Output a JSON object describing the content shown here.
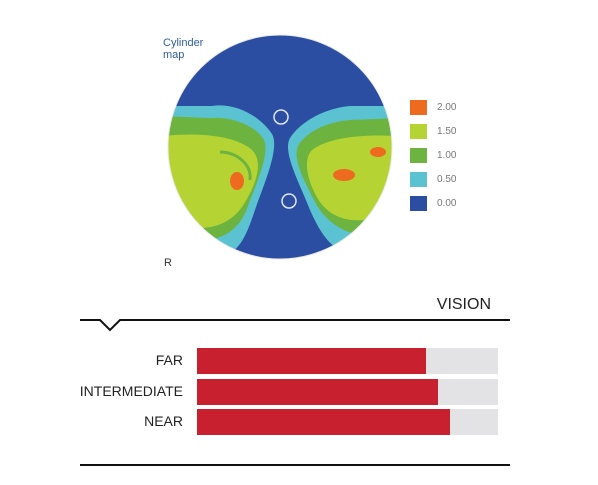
{
  "cylinder_map": {
    "caption": "Cylinder\nmap",
    "eye_label": "R",
    "colors": {
      "zone_0_00": "#2b4ea3",
      "zone_0_50": "#5bc2d1",
      "zone_1_00": "#6cb33f",
      "zone_1_50": "#b6d334",
      "zone_2_00": "#ee6a1f"
    }
  },
  "legend": {
    "items": [
      {
        "label": "2.00",
        "color": "#ee6a1f"
      },
      {
        "label": "1.50",
        "color": "#b6d334"
      },
      {
        "label": "1.00",
        "color": "#6cb33f"
      },
      {
        "label": "0.50",
        "color": "#5bc2d1"
      },
      {
        "label": "0.00",
        "color": "#2b4ea3"
      }
    ]
  },
  "vision": {
    "title": "VISION",
    "bar_color": "#c8202f",
    "track_color": "#e3e3e6",
    "bars": [
      {
        "label": "FAR",
        "level": 0.76
      },
      {
        "label": "INTERMEDIATE",
        "level": 0.8
      },
      {
        "label": "NEAR",
        "level": 0.84
      }
    ]
  }
}
